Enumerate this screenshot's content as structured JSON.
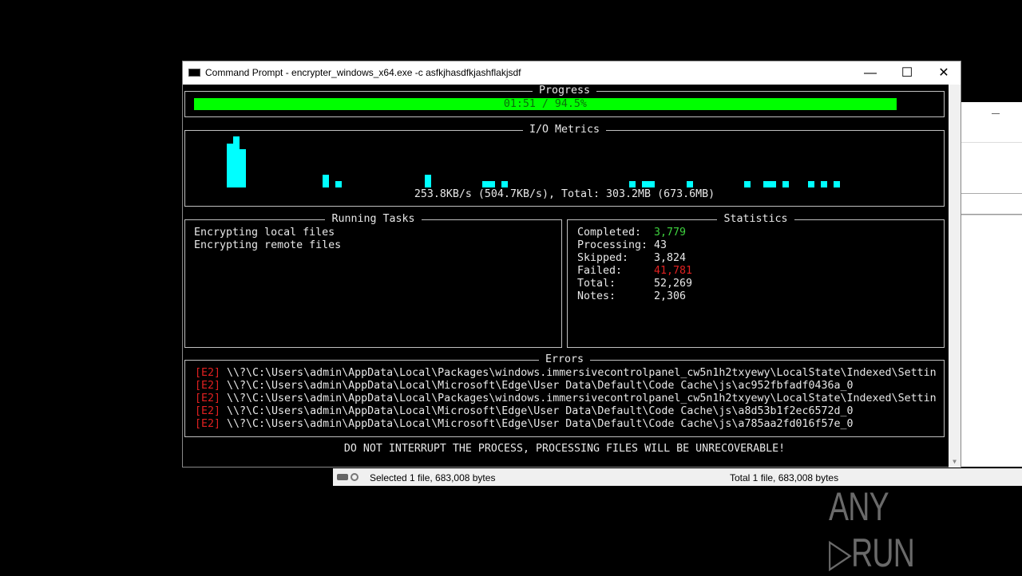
{
  "window": {
    "title": "Command Prompt - encrypter_windows_x64.exe  -c asfkjhasdfkjashflakjsdf",
    "minimize": "—",
    "maximize": "☐",
    "close": "✕"
  },
  "progress": {
    "title": "Progress",
    "label": "01:51 / 94.5%",
    "percent": 94.5,
    "color": "#00ff00"
  },
  "io": {
    "title": "I/O Metrics",
    "summary": "253.8KB/s (504.7KB/s), Total: 303.2MB (673.6MB)",
    "bar_color": "#00ffff",
    "history": [
      0,
      0,
      0,
      0,
      0,
      55,
      64,
      48,
      0,
      0,
      0,
      0,
      0,
      0,
      0,
      0,
      0,
      0,
      0,
      0,
      16,
      0,
      8,
      0,
      0,
      0,
      0,
      0,
      0,
      0,
      0,
      0,
      0,
      0,
      0,
      0,
      16,
      0,
      0,
      0,
      0,
      0,
      0,
      0,
      0,
      8,
      8,
      0,
      8,
      0,
      0,
      0,
      0,
      0,
      0,
      0,
      0,
      0,
      0,
      0,
      0,
      0,
      0,
      0,
      0,
      0,
      0,
      0,
      8,
      0,
      8,
      8,
      0,
      0,
      0,
      0,
      0,
      8,
      0,
      0,
      0,
      0,
      0,
      0,
      0,
      0,
      8,
      0,
      0,
      8,
      8,
      0,
      8,
      0,
      0,
      0,
      8,
      0,
      8,
      0,
      8
    ]
  },
  "tasks": {
    "title": "Running Tasks",
    "items": [
      "Encrypting local files",
      "Encrypting remote files"
    ]
  },
  "stats": {
    "title": "Statistics",
    "rows": [
      {
        "label": "Completed:",
        "value": "3,779",
        "color": "#3ed13e"
      },
      {
        "label": "Processing:",
        "value": "43"
      },
      {
        "label": "Skipped:",
        "value": "3,824"
      },
      {
        "label": "Failed:",
        "value": "41,781",
        "color": "#e02020"
      },
      {
        "label": "Total:",
        "value": "52,269"
      },
      {
        "label": "Notes:",
        "value": "2,306"
      }
    ]
  },
  "errors": {
    "title": "Errors",
    "items": [
      {
        "code": "[E2]",
        "path": "\\\\?\\C:\\Users\\admin\\AppData\\Local\\Packages\\windows.immersivecontrolpanel_cw5n1h2txyewy\\LocalState\\Indexed\\Settin"
      },
      {
        "code": "[E2]",
        "path": "\\\\?\\C:\\Users\\admin\\AppData\\Local\\Microsoft\\Edge\\User Data\\Default\\Code Cache\\js\\ac952fbfadf0436a_0"
      },
      {
        "code": "[E2]",
        "path": "\\\\?\\C:\\Users\\admin\\AppData\\Local\\Packages\\windows.immersivecontrolpanel_cw5n1h2txyewy\\LocalState\\Indexed\\Settin"
      },
      {
        "code": "[E2]",
        "path": "\\\\?\\C:\\Users\\admin\\AppData\\Local\\Microsoft\\Edge\\User Data\\Default\\Code Cache\\js\\a8d53b1f2ec6572d_0"
      },
      {
        "code": "[E2]",
        "path": "\\\\?\\C:\\Users\\admin\\AppData\\Local\\Microsoft\\Edge\\User Data\\Default\\Code Cache\\js\\a785aa2fd016f57e_0"
      }
    ]
  },
  "warning": "DO NOT INTERRUPT THE PROCESS, PROCESSING FILES WILL BE UNRECOVERABLE!",
  "statusbar": {
    "selected": "Selected 1 file, 683,008 bytes",
    "total": "Total 1 file, 683,008 bytes"
  },
  "watermark": "ANY RUN"
}
